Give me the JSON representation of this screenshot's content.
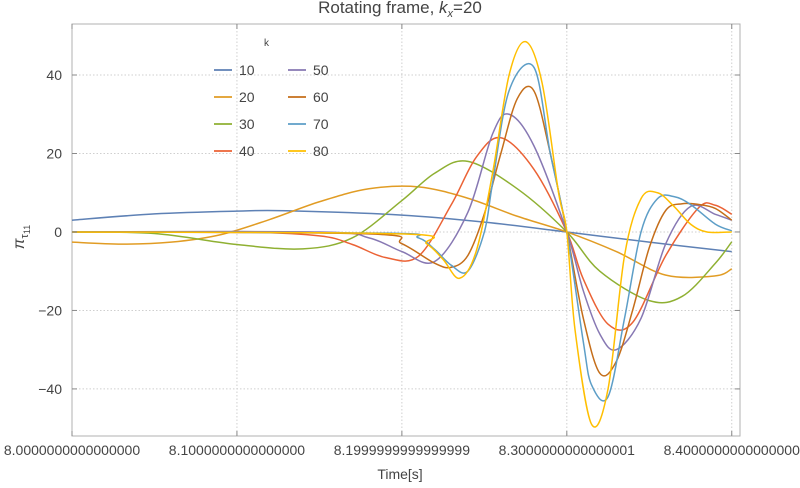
{
  "chart_data": {
    "type": "line",
    "title_prefix": "Rotating frame, ",
    "title_var": "k",
    "title_sub": "x",
    "title_suffix": "=20",
    "xlabel": "Time[s]",
    "ylabel_main": "π",
    "ylabel_sub": "τ",
    "ylabel_subsub": "11",
    "legend_title": "k",
    "legend_position": "top-left",
    "grid": true,
    "xlim": [
      8.0,
      8.405
    ],
    "ylim": [
      -52,
      53
    ],
    "x_ticks": [
      {
        "value": 8.0,
        "label": "8.0000000000000000"
      },
      {
        "value": 8.1,
        "label": "8.1000000000000000"
      },
      {
        "value": 8.2,
        "label": "8.1999999999999999"
      },
      {
        "value": 8.3,
        "label": "8.3000000000000001"
      },
      {
        "value": 8.4,
        "label": "8.4000000000000000"
      }
    ],
    "y_ticks": [
      {
        "value": 40,
        "label": "40"
      },
      {
        "value": 20,
        "label": "20"
      },
      {
        "value": 0,
        "label": "0"
      },
      {
        "value": -20,
        "label": "−20"
      },
      {
        "value": -40,
        "label": "−40"
      }
    ],
    "x_gridlines": [
      8.0,
      8.1,
      8.2,
      8.3,
      8.4
    ],
    "y_gridlines": [
      40,
      20,
      0,
      -20,
      -40
    ],
    "series": [
      {
        "name": "10",
        "color": "#5E81B5",
        "x": [
          8.0,
          8.05,
          8.1,
          8.13,
          8.2,
          8.25,
          8.3,
          8.35,
          8.4
        ],
        "y": [
          3,
          4.6,
          5.3,
          5.4,
          4.3,
          2.5,
          0,
          -2.6,
          -5
        ]
      },
      {
        "name": "20",
        "color": "#E19C24",
        "x": [
          8.0,
          8.03,
          8.06,
          8.09,
          8.12,
          8.15,
          8.18,
          8.21,
          8.24,
          8.27,
          8.3,
          8.33,
          8.36,
          8.39,
          8.4
        ],
        "y": [
          -2.6,
          -3.1,
          -2.6,
          -0.7,
          3.2,
          7.7,
          11,
          11.5,
          8.6,
          4,
          0,
          -5,
          -11,
          -11.2,
          -9.4
        ]
      },
      {
        "name": "30",
        "color": "#8FB032",
        "x": [
          8.0,
          8.05,
          8.1,
          8.14,
          8.17,
          8.2,
          8.22,
          8.24,
          8.27,
          8.3,
          8.32,
          8.35,
          8.37,
          8.39,
          8.4
        ],
        "y": [
          0,
          -0.4,
          -3.2,
          -4.3,
          -1.5,
          8,
          15,
          18,
          11,
          0,
          -10,
          -17.5,
          -16.4,
          -8,
          -2.5
        ]
      },
      {
        "name": "40",
        "color": "#EB6235",
        "x": [
          8.0,
          8.1,
          8.15,
          8.17,
          8.19,
          8.21,
          8.23,
          8.245,
          8.26,
          8.28,
          8.3,
          8.31,
          8.325,
          8.34,
          8.36,
          8.38,
          8.39,
          8.4
        ],
        "y": [
          0,
          0,
          -1,
          -3.2,
          -6.5,
          -6.2,
          7,
          19,
          24,
          16,
          0,
          -12,
          -23.5,
          -23,
          -6,
          6.2,
          6.8,
          4.5
        ]
      },
      {
        "name": "50",
        "color": "#8778B3",
        "x": [
          8.0,
          8.15,
          8.18,
          8.2,
          8.22,
          8.24,
          8.255,
          8.265,
          8.28,
          8.3,
          8.31,
          8.32,
          8.33,
          8.345,
          8.36,
          8.375,
          8.39,
          8.4
        ],
        "y": [
          0,
          0,
          -1.5,
          -5,
          -7.5,
          5,
          25,
          30,
          22,
          0,
          -15,
          -26,
          -30,
          -22,
          -3,
          6.5,
          4.5,
          3
        ]
      },
      {
        "name": "60",
        "color": "#C56E1A",
        "x": [
          8.0,
          8.18,
          8.2,
          8.22,
          8.23,
          8.24,
          8.25,
          8.26,
          8.27,
          8.28,
          8.29,
          8.3,
          8.31,
          8.32,
          8.33,
          8.34,
          8.35,
          8.36,
          8.37,
          8.38,
          8.39,
          8.4
        ],
        "y": [
          0,
          -0.5,
          -3,
          -8,
          -9,
          -6,
          4.6,
          20,
          34,
          36,
          20,
          0,
          -22,
          -36,
          -33,
          -19.8,
          -4,
          5.5,
          7.2,
          7,
          6,
          3
        ]
      },
      {
        "name": "70",
        "color": "#5D9EC7",
        "x": [
          8.0,
          8.19,
          8.21,
          8.22,
          8.23,
          8.24,
          8.25,
          8.255,
          8.265,
          8.28,
          8.29,
          8.3,
          8.31,
          8.315,
          8.325,
          8.335,
          8.345,
          8.355,
          8.365,
          8.375,
          8.39,
          8.4
        ],
        "y": [
          0,
          -0.3,
          -1.5,
          -4.5,
          -8.5,
          -10,
          0,
          12.5,
          36,
          42,
          20,
          0,
          -28,
          -39,
          -42,
          -22,
          0,
          8.5,
          9,
          7,
          2,
          0.3
        ]
      },
      {
        "name": "80",
        "color": "#FFBF00",
        "x": [
          8.0,
          8.2,
          8.215,
          8.225,
          8.235,
          8.245,
          8.255,
          8.265,
          8.275,
          8.285,
          8.295,
          8.3,
          8.305,
          8.315,
          8.325,
          8.335,
          8.345,
          8.355,
          8.365,
          8.375,
          8.385,
          8.4
        ],
        "y": [
          0,
          -0.5,
          -3,
          -7,
          -11.8,
          -5,
          15,
          40,
          48.5,
          38,
          10,
          0,
          -25,
          -49,
          -40,
          -6,
          8.5,
          10,
          6.5,
          2,
          0,
          0
        ]
      }
    ]
  }
}
